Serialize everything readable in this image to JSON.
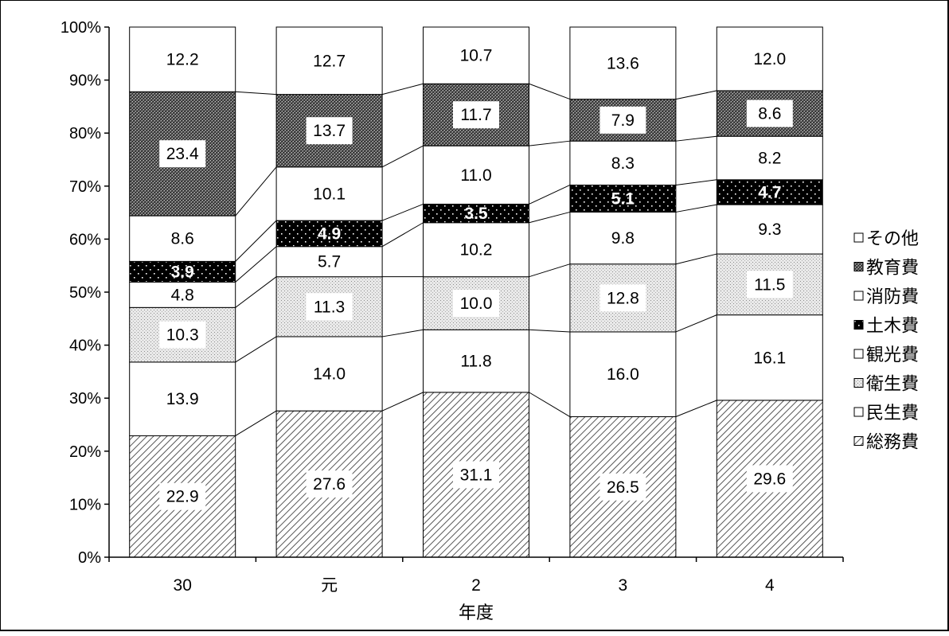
{
  "chart_data": {
    "type": "bar",
    "stacked": true,
    "percent": true,
    "title": "",
    "xlabel": "年度",
    "ylabel": "",
    "ylim": [
      0,
      100
    ],
    "yticks": [
      "0%",
      "10%",
      "20%",
      "30%",
      "40%",
      "50%",
      "60%",
      "70%",
      "80%",
      "90%",
      "100%"
    ],
    "categories": [
      "30",
      "元",
      "2",
      "3",
      "4"
    ],
    "legend_position": "right",
    "series": [
      {
        "name": "総務費",
        "pattern": "diagonal-hatch",
        "values": [
          22.9,
          27.6,
          31.1,
          26.5,
          29.6
        ]
      },
      {
        "name": "民生費",
        "pattern": "white",
        "values": [
          13.9,
          14.0,
          11.8,
          16.0,
          16.1
        ]
      },
      {
        "name": "衛生費",
        "pattern": "light-dots",
        "values": [
          10.3,
          11.3,
          10.0,
          12.8,
          11.5
        ]
      },
      {
        "name": "観光費",
        "pattern": "white",
        "values": [
          4.8,
          5.7,
          10.2,
          9.8,
          9.3
        ]
      },
      {
        "name": "土木費",
        "pattern": "black-dots",
        "values": [
          3.9,
          4.9,
          3.5,
          5.1,
          4.7
        ]
      },
      {
        "name": "消防費",
        "pattern": "white",
        "values": [
          8.6,
          10.1,
          11.0,
          8.3,
          8.2
        ]
      },
      {
        "name": "教育費",
        "pattern": "dark-crosshatch",
        "values": [
          23.4,
          13.7,
          11.7,
          7.9,
          8.6
        ]
      },
      {
        "name": "その他",
        "pattern": "white",
        "values": [
          12.2,
          12.7,
          10.7,
          13.6,
          12.0
        ]
      }
    ]
  }
}
